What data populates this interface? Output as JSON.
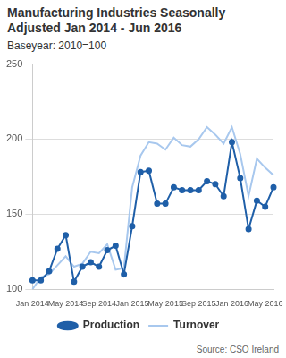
{
  "chart_data": {
    "type": "line",
    "title": "Manufacturing Industries Seasonally Adjusted Jan 2014 - Jun 2016",
    "subtitle": "Baseyear: 2010=100",
    "source": "Source: CSO Ireland",
    "categories": [
      "Jan 2014",
      null,
      null,
      null,
      "May 2014",
      null,
      null,
      null,
      "Sep 2014",
      null,
      null,
      null,
      "Jan 2015",
      null,
      null,
      null,
      "May 2015",
      null,
      null,
      null,
      "Sep 2015",
      null,
      null,
      null,
      "Jan 2016",
      null,
      null,
      null,
      "May 2016",
      null
    ],
    "series": [
      {
        "name": "Production",
        "color": "#1f5fa8",
        "marker": "circle",
        "values": [
          106,
          106,
          112,
          127,
          136,
          105,
          115,
          118,
          115,
          126,
          129,
          110,
          142,
          178,
          179,
          157,
          157,
          168,
          166,
          166,
          166,
          172,
          170,
          162,
          198,
          174,
          140,
          159,
          155,
          168
        ]
      },
      {
        "name": "Turnover",
        "color": "#a8c8ee",
        "marker": "none",
        "values": [
          100,
          108,
          110,
          116,
          122,
          115,
          117,
          125,
          124,
          130,
          113,
          114,
          168,
          189,
          198,
          197,
          193,
          201,
          196,
          195,
          200,
          208,
          203,
          197,
          208,
          190,
          162,
          187,
          181,
          176
        ]
      }
    ],
    "ylim": [
      100,
      250
    ],
    "yticks": [
      100,
      150,
      200,
      250
    ],
    "grid": true,
    "legend": "bottom"
  }
}
